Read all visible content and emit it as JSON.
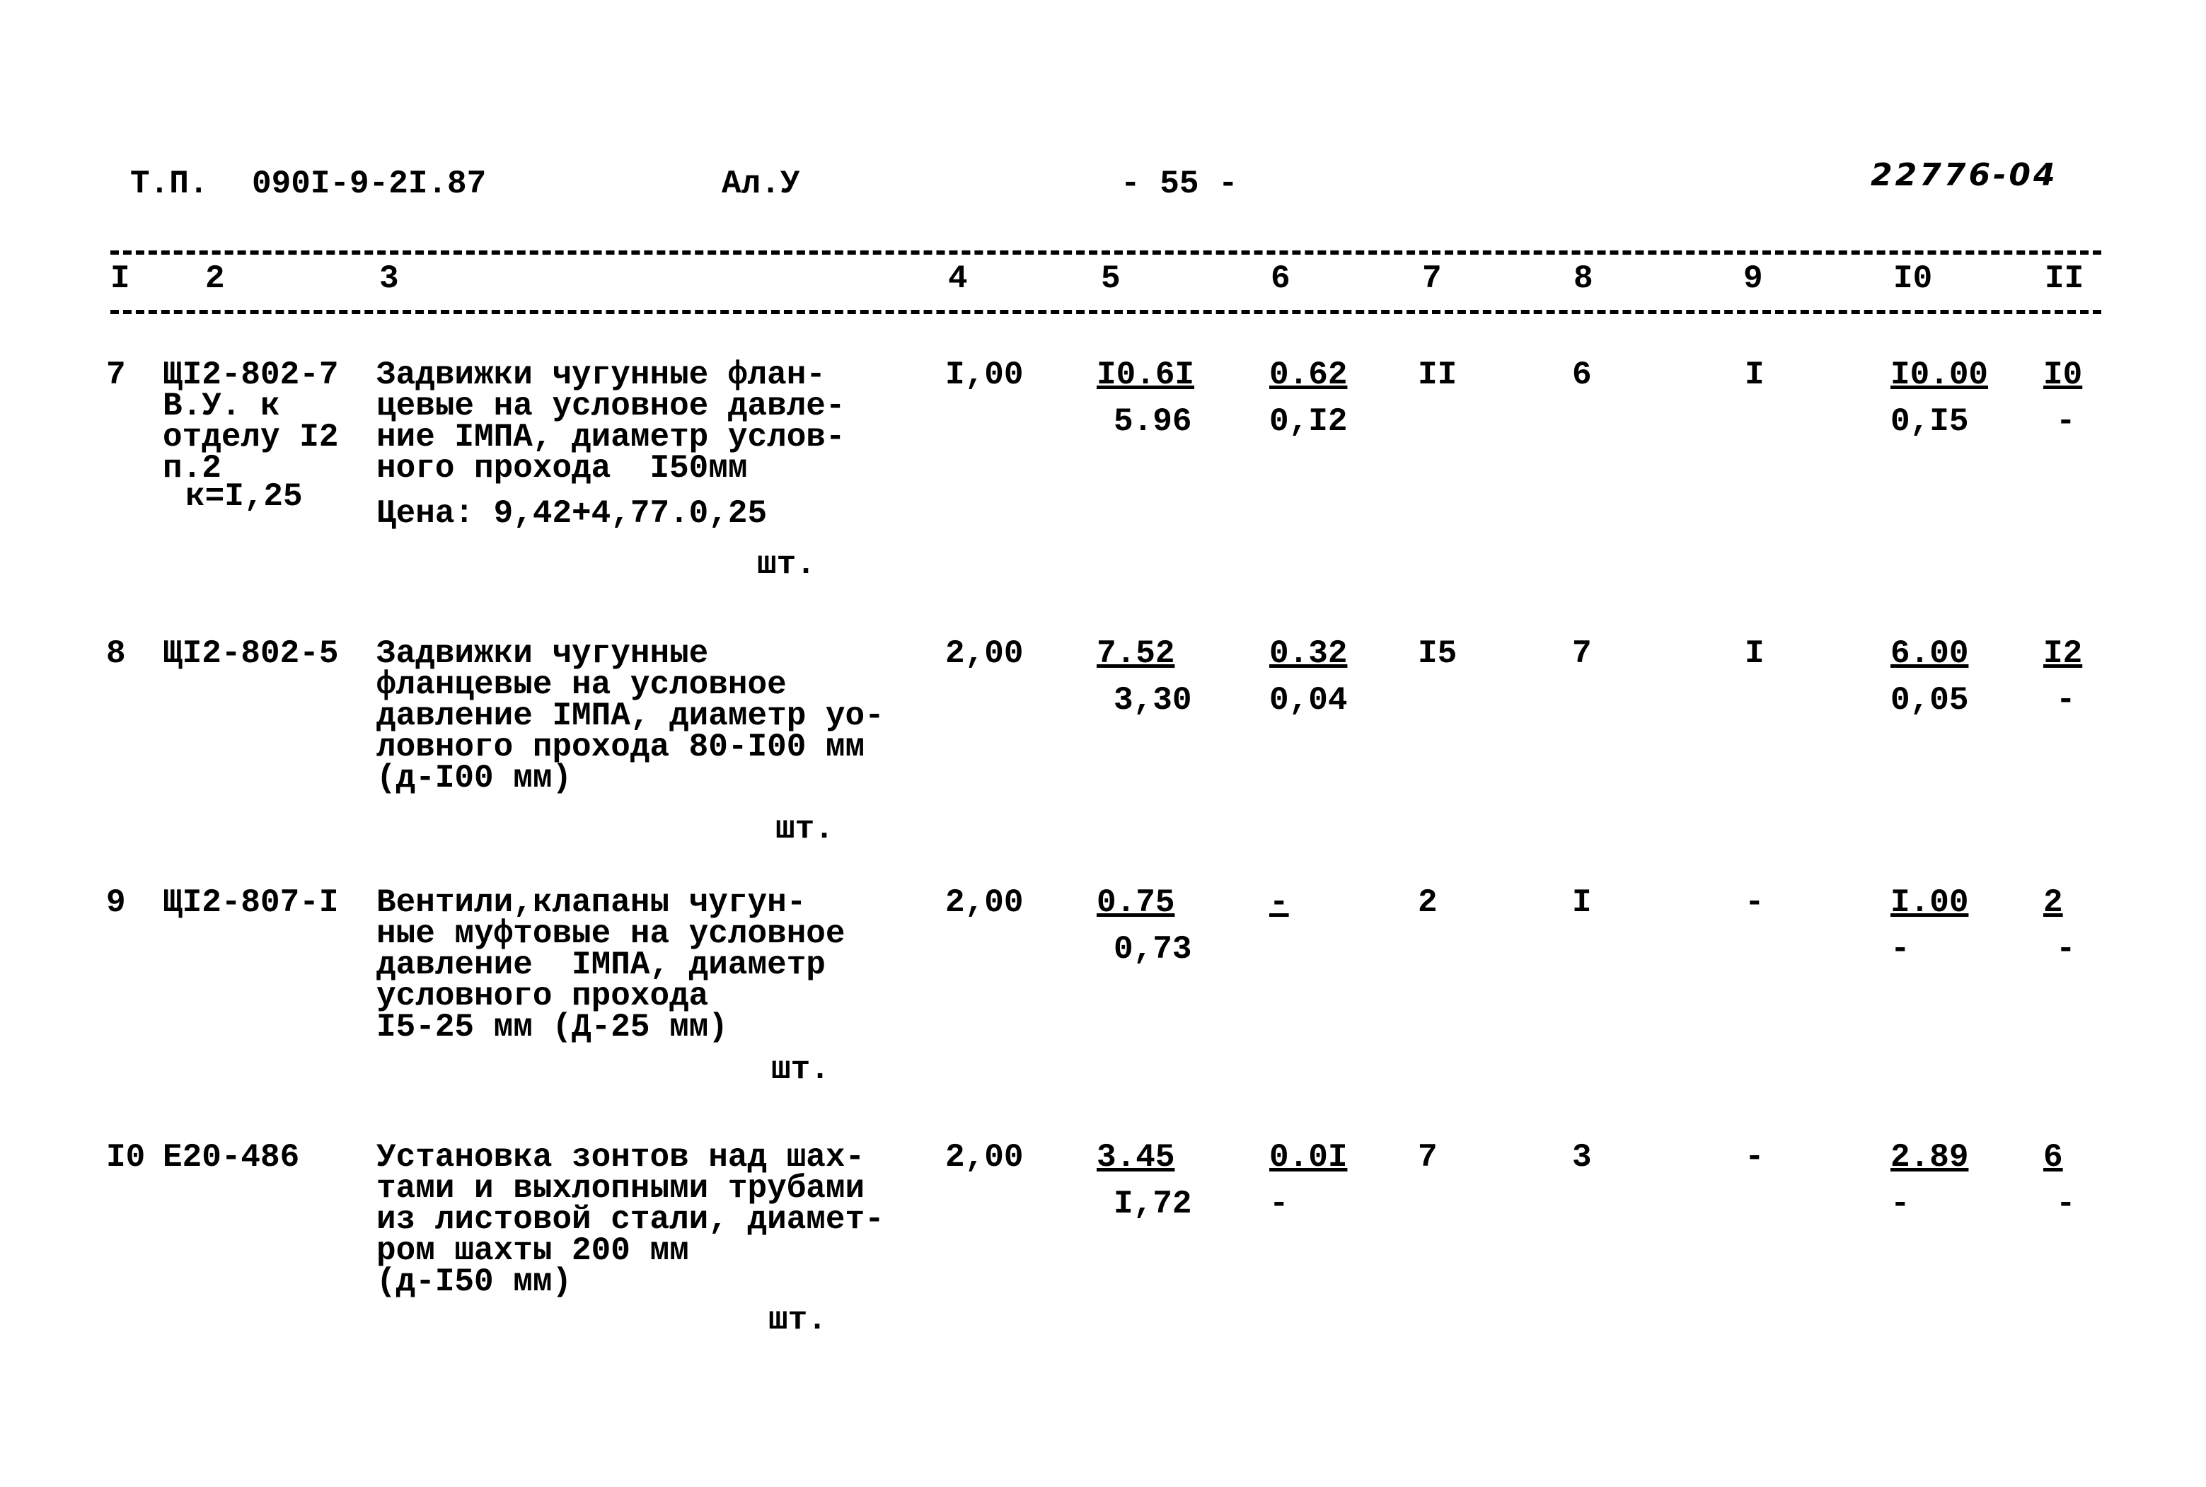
{
  "header": {
    "series": "Т.П.",
    "project": "090I-9-2I.87",
    "album": "Ал.У",
    "page": "- 55 -",
    "stamp": "22776-04"
  },
  "columns": [
    "I",
    "2",
    "3",
    "4",
    "5",
    "6",
    "7",
    "8",
    "9",
    "I0",
    "II"
  ],
  "rows": [
    {
      "num": "7",
      "code": "ЩI2-802-7\nВ.У. к\nотделу I2\nп.2",
      "coef": "к=I,25",
      "desc": "Задвижки чугунные флан-\nцевые на условное давле-\nние IМПА, диаметр услов-\nного прохода  I50мм",
      "price": "Цена: 9,42+4,77.0,25",
      "unit": "шт.",
      "c4": "I,00",
      "c5a": "I0.6I",
      "c5b": "5.96",
      "c6a": "0.62",
      "c6b": "0,I2",
      "c7": "II",
      "c8": "6",
      "c9": "I",
      "c10a": "I0.00",
      "c10b": "0,I5",
      "c11a": "I0",
      "c11b": "-"
    },
    {
      "num": "8",
      "code": "ЩI2-802-5",
      "desc": "Задвижки чугунные\nфланцевые на условное\nдавление IМПА, диаметр уо-\nловного прохода 80-I00 мм\n(д-I00 мм)",
      "unit": "шт.",
      "c4": "2,00",
      "c5a": "7.52",
      "c5b": "3,30",
      "c6a": "0.32",
      "c6b": "0,04",
      "c7": "I5",
      "c8": "7",
      "c9": "I",
      "c10a": "6.00",
      "c10b": "0,05",
      "c11a": "I2",
      "c11b": "-"
    },
    {
      "num": "9",
      "code": "ЩI2-807-I",
      "desc": "Вентили,клапаны чугун-\nные муфтовые на условное\nдавление  IМПА, диаметр\nусловного прохода\nI5-25 мм (Д-25 мм)",
      "unit": "шт.",
      "c4": "2,00",
      "c5a": "0.75",
      "c5b": "0,73",
      "c6a": "-",
      "c6b": "",
      "c7": "2",
      "c8": "I",
      "c9": "-",
      "c10a": "I.00",
      "c10b": "-",
      "c11a": "2",
      "c11b": "-"
    },
    {
      "num": "I0",
      "code": "Е20-486",
      "desc": "Установка зонтов над шах-\nтами и выхлопными трубами\nиз листовой стали, диамет-\nром шахты 200 мм\n(д-I50 мм)",
      "unit": "шт.",
      "c4": "2,00",
      "c5a": "3.45",
      "c5b": "I,72",
      "c6a": "0.0I",
      "c6b": "-",
      "c7": "7",
      "c8": "3",
      "c9": "-",
      "c10a": "2.89",
      "c10b": "-",
      "c11a": "6",
      "c11b": "-"
    }
  ]
}
